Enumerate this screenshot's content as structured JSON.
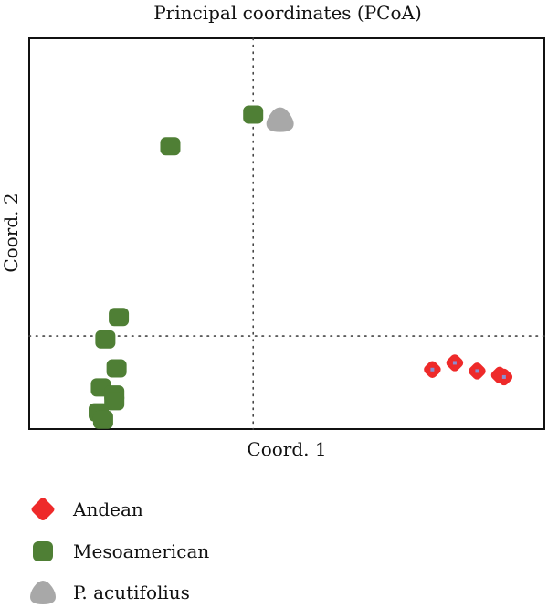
{
  "chart_data": {
    "type": "scatter",
    "title": "Principal coordinates (PCoA)",
    "xlabel": "Coord. 1",
    "ylabel": "Coord. 2",
    "xlim": [
      -0.5,
      0.65
    ],
    "ylim": [
      -0.25,
      0.8
    ],
    "grid": false,
    "reference_lines": {
      "x": 0,
      "y": 0
    },
    "legend_position": "bottom-left",
    "colors": {
      "Andean": "#ee2a2a",
      "Mesoamerican": "#4f7f35",
      "P. acutifolius": "#a8a8a8"
    },
    "series": [
      {
        "name": "Andean",
        "marker": "diamond-rounded",
        "points": [
          {
            "x": 0.4,
            "y": -0.09
          },
          {
            "x": 0.45,
            "y": -0.072
          },
          {
            "x": 0.5,
            "y": -0.094
          },
          {
            "x": 0.55,
            "y": -0.105
          },
          {
            "x": 0.56,
            "y": -0.11
          }
        ]
      },
      {
        "name": "Mesoamerican",
        "marker": "square-rounded",
        "points": [
          {
            "x": 0.0,
            "y": 0.595
          },
          {
            "x": -0.185,
            "y": 0.51
          },
          {
            "x": -0.3,
            "y": 0.051
          },
          {
            "x": -0.33,
            "y": -0.009
          },
          {
            "x": -0.305,
            "y": -0.087
          },
          {
            "x": -0.34,
            "y": -0.138
          },
          {
            "x": -0.31,
            "y": -0.157
          },
          {
            "x": -0.31,
            "y": -0.175
          },
          {
            "x": -0.345,
            "y": -0.205
          },
          {
            "x": -0.335,
            "y": -0.225
          }
        ]
      },
      {
        "name": "P. acutifolius",
        "marker": "blob",
        "points": [
          {
            "x": 0.06,
            "y": 0.58
          }
        ]
      }
    ]
  }
}
